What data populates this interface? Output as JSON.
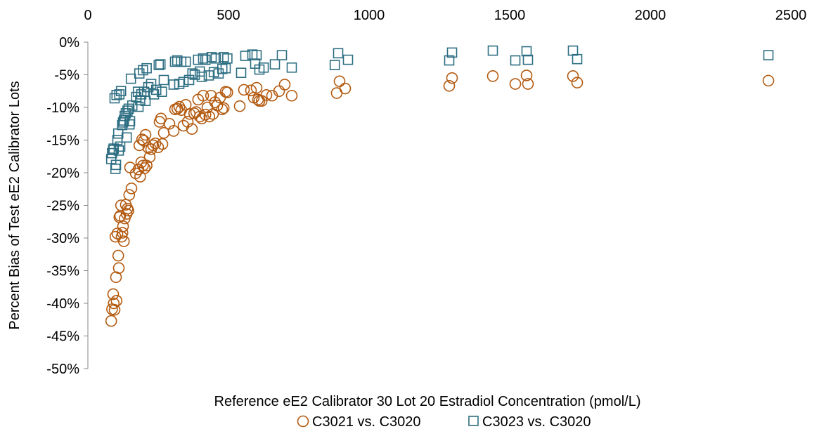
{
  "chart_data": {
    "type": "scatter",
    "title": "",
    "xlabel": "Reference eE2 Calibrator 30 Lot 20 Estradiol Concentration (pmol/L)",
    "ylabel": "Percent Bias of Test eE2 Calibrator Lots",
    "xlim": [
      0,
      2500
    ],
    "ylim": [
      -50,
      0
    ],
    "x_ticks": [
      0,
      500,
      1000,
      1500,
      2000,
      2500
    ],
    "y_ticks": [
      0,
      -5,
      -10,
      -15,
      -20,
      -25,
      -30,
      -35,
      -40,
      -45,
      -50
    ],
    "y_tick_labels": [
      "0%",
      "-5%",
      "-10%",
      "-15%",
      "-20%",
      "-25%",
      "-30%",
      "-35%",
      "-40%",
      "-45%",
      "-50%"
    ],
    "x_axis_position": "top",
    "grid": false,
    "legend_position": "bottom",
    "series": [
      {
        "name": "C3021 vs. C3020",
        "marker": "circle",
        "color": "#b35a10",
        "points": [
          [
            83,
            -42.7
          ],
          [
            86,
            -40.9
          ],
          [
            90,
            -38.6
          ],
          [
            92,
            -40.0
          ],
          [
            95,
            -41.0
          ],
          [
            98,
            -29.8
          ],
          [
            100,
            -36.0
          ],
          [
            102,
            -39.6
          ],
          [
            105,
            -29.3
          ],
          [
            108,
            -32.7
          ],
          [
            110,
            -34.6
          ],
          [
            112,
            -26.8
          ],
          [
            115,
            -26.6
          ],
          [
            118,
            -25.0
          ],
          [
            120,
            -29.8
          ],
          [
            123,
            -29.2
          ],
          [
            125,
            -28.2
          ],
          [
            128,
            -30.5
          ],
          [
            131,
            -27.0
          ],
          [
            135,
            -24.9
          ],
          [
            138,
            -26.3
          ],
          [
            141,
            -25.5
          ],
          [
            144,
            -25.8
          ],
          [
            147,
            -23.4
          ],
          [
            150,
            -19.2
          ],
          [
            155,
            -22.4
          ],
          [
            170,
            -20.1
          ],
          [
            180,
            -19.5
          ],
          [
            183,
            -15.8
          ],
          [
            186,
            -20.6
          ],
          [
            190,
            -18.4
          ],
          [
            193,
            -14.9
          ],
          [
            196,
            -18.9
          ],
          [
            199,
            -15.1
          ],
          [
            202,
            -19.3
          ],
          [
            205,
            -14.2
          ],
          [
            209,
            -18.9
          ],
          [
            215,
            -16.2
          ],
          [
            220,
            -17.6
          ],
          [
            225,
            -16.4
          ],
          [
            232,
            -15.8
          ],
          [
            240,
            -15.5
          ],
          [
            250,
            -16.1
          ],
          [
            255,
            -12.2
          ],
          [
            260,
            -11.7
          ],
          [
            265,
            -15.6
          ],
          [
            270,
            -13.9
          ],
          [
            290,
            -12.5
          ],
          [
            305,
            -13.6
          ],
          [
            310,
            -10.3
          ],
          [
            318,
            -10.2
          ],
          [
            325,
            -9.9
          ],
          [
            332,
            -10.4
          ],
          [
            340,
            -12.8
          ],
          [
            348,
            -9.6
          ],
          [
            355,
            -12.2
          ],
          [
            362,
            -11.0
          ],
          [
            370,
            -13.3
          ],
          [
            378,
            -10.9
          ],
          [
            385,
            -10.7
          ],
          [
            392,
            -8.8
          ],
          [
            398,
            -11.4
          ],
          [
            405,
            -11.7
          ],
          [
            410,
            -8.2
          ],
          [
            418,
            -11.1
          ],
          [
            425,
            -10.0
          ],
          [
            432,
            -11.4
          ],
          [
            438,
            -8.2
          ],
          [
            445,
            -11.0
          ],
          [
            452,
            -9.2
          ],
          [
            460,
            -9.7
          ],
          [
            470,
            -8.5
          ],
          [
            477,
            -10.3
          ],
          [
            483,
            -10.1
          ],
          [
            490,
            -7.6
          ],
          [
            496,
            -7.7
          ],
          [
            540,
            -9.8
          ],
          [
            555,
            -7.3
          ],
          [
            580,
            -7.4
          ],
          [
            590,
            -8.5
          ],
          [
            600,
            -7.0
          ],
          [
            605,
            -8.8
          ],
          [
            610,
            -9.0
          ],
          [
            618,
            -9.0
          ],
          [
            635,
            -8.1
          ],
          [
            655,
            -8.2
          ],
          [
            680,
            -7.5
          ],
          [
            700,
            -6.5
          ],
          [
            725,
            -8.2
          ],
          [
            885,
            -7.8
          ],
          [
            895,
            -6.0
          ],
          [
            915,
            -7.1
          ],
          [
            1285,
            -6.7
          ],
          [
            1295,
            -5.5
          ],
          [
            1440,
            -5.2
          ],
          [
            1520,
            -6.4
          ],
          [
            1560,
            -5.1
          ],
          [
            1565,
            -6.4
          ],
          [
            1725,
            -5.2
          ],
          [
            1740,
            -6.2
          ],
          [
            2420,
            -5.9
          ]
        ]
      },
      {
        "name": "C3023 vs. C3020",
        "marker": "square",
        "color": "#2d6e82",
        "points": [
          [
            83,
            -17.9
          ],
          [
            86,
            -17.0
          ],
          [
            90,
            -16.5
          ],
          [
            92,
            -16.3
          ],
          [
            95,
            -8.6
          ],
          [
            98,
            -19.4
          ],
          [
            100,
            -18.8
          ],
          [
            102,
            -8.1
          ],
          [
            105,
            -15.0
          ],
          [
            108,
            -14.0
          ],
          [
            110,
            -16.6
          ],
          [
            112,
            -8.0
          ],
          [
            115,
            -16.0
          ],
          [
            118,
            -7.5
          ],
          [
            122,
            -12.7
          ],
          [
            125,
            -12.3
          ],
          [
            128,
            -12.0
          ],
          [
            131,
            -11.3
          ],
          [
            135,
            -10.9
          ],
          [
            138,
            -14.6
          ],
          [
            141,
            -10.5
          ],
          [
            145,
            -10.2
          ],
          [
            148,
            -12.6
          ],
          [
            150,
            -12.1
          ],
          [
            153,
            -5.6
          ],
          [
            158,
            -9.7
          ],
          [
            172,
            -8.4
          ],
          [
            178,
            -7.6
          ],
          [
            180,
            -9.9
          ],
          [
            183,
            -4.8
          ],
          [
            186,
            -8.9
          ],
          [
            190,
            -8.0
          ],
          [
            196,
            -4.3
          ],
          [
            200,
            -7.6
          ],
          [
            205,
            -9.0
          ],
          [
            209,
            -4.0
          ],
          [
            215,
            -6.9
          ],
          [
            225,
            -6.4
          ],
          [
            235,
            -8.0
          ],
          [
            243,
            -7.3
          ],
          [
            252,
            -3.5
          ],
          [
            258,
            -3.4
          ],
          [
            263,
            -7.6
          ],
          [
            270,
            -5.8
          ],
          [
            305,
            -6.5
          ],
          [
            310,
            -3.0
          ],
          [
            318,
            -2.8
          ],
          [
            325,
            -6.4
          ],
          [
            332,
            -3.0
          ],
          [
            340,
            -6.1
          ],
          [
            348,
            -3.0
          ],
          [
            360,
            -5.8
          ],
          [
            372,
            -4.8
          ],
          [
            380,
            -5.0
          ],
          [
            392,
            -2.7
          ],
          [
            398,
            -4.5
          ],
          [
            405,
            -5.3
          ],
          [
            410,
            -2.5
          ],
          [
            418,
            -2.7
          ],
          [
            430,
            -5.1
          ],
          [
            440,
            -2.3
          ],
          [
            448,
            -4.6
          ],
          [
            455,
            -2.5
          ],
          [
            465,
            -4.8
          ],
          [
            478,
            -4.1
          ],
          [
            483,
            -2.3
          ],
          [
            490,
            -4.0
          ],
          [
            496,
            -2.5
          ],
          [
            545,
            -4.7
          ],
          [
            560,
            -2.1
          ],
          [
            585,
            -1.9
          ],
          [
            595,
            -3.3
          ],
          [
            600,
            -2.0
          ],
          [
            610,
            -4.2
          ],
          [
            625,
            -3.9
          ],
          [
            665,
            -3.4
          ],
          [
            690,
            -2.0
          ],
          [
            725,
            -3.9
          ],
          [
            878,
            -3.5
          ],
          [
            890,
            -1.7
          ],
          [
            925,
            -2.7
          ],
          [
            1285,
            -2.8
          ],
          [
            1295,
            -1.6
          ],
          [
            1440,
            -1.3
          ],
          [
            1520,
            -2.8
          ],
          [
            1560,
            -1.4
          ],
          [
            1565,
            -2.7
          ],
          [
            1725,
            -1.3
          ],
          [
            1740,
            -2.6
          ],
          [
            2420,
            -2.0
          ]
        ]
      }
    ]
  }
}
